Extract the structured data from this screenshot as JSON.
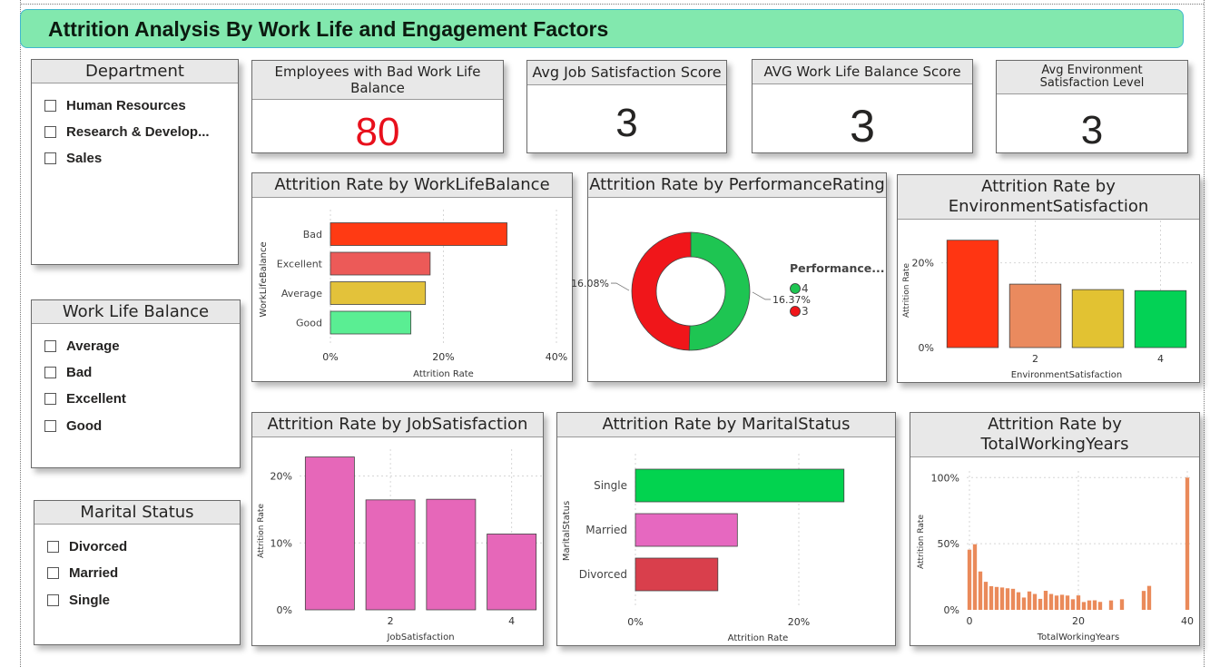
{
  "page_title": "Attrition Analysis By Work Life and Engagement Factors",
  "slicers": {
    "department": {
      "title": "Department",
      "items": [
        "Human Resources",
        "Research & Develop...",
        "Sales"
      ]
    },
    "work_life_balance": {
      "title": "Work Life Balance",
      "items": [
        "Average",
        "Bad",
        "Excellent",
        "Good"
      ]
    },
    "marital_status": {
      "title": "Marital Status",
      "items": [
        "Divorced",
        "Married",
        "Single"
      ]
    }
  },
  "kpis": [
    {
      "label": "Employees with Bad Work Life Balance",
      "value": "80",
      "color": "#e8101c"
    },
    {
      "label": "Avg Job Satisfaction Score",
      "value": "3",
      "color": "#252423"
    },
    {
      "label": "AVG Work Life Balance Score",
      "value": "3",
      "color": "#252423"
    },
    {
      "label": "Avg Environment Satisfaction Level",
      "value": "3",
      "color": "#252423"
    }
  ],
  "chart_data": [
    {
      "id": "wlb",
      "type": "bar",
      "orientation": "horizontal",
      "title": "Attrition Rate by WorkLifeBalance",
      "xlabel": "Attrition Rate",
      "ylabel": "WorkLifeBalance",
      "categories": [
        "Bad",
        "Excellent",
        "Average",
        "Good"
      ],
      "values": [
        0.3125,
        0.1765,
        0.1682,
        0.1424
      ],
      "colors": [
        "#ff3a13",
        "#ec5a58",
        "#e3c23a",
        "#5aee93"
      ],
      "xlim": [
        0,
        0.4
      ],
      "xticks": [
        {
          "v": 0,
          "label": "0%"
        },
        {
          "v": 0.2,
          "label": "20%"
        },
        {
          "v": 0.4,
          "label": "40%"
        }
      ],
      "grid": true
    },
    {
      "id": "perf",
      "type": "pie",
      "style": "donut",
      "title": "Attrition Rate by PerformanceRating",
      "legend_title": "Performance...",
      "legend_position": "right",
      "slices": [
        {
          "label": "4",
          "value": 0.1637,
          "color": "#1ec552",
          "data_label": "16.37%"
        },
        {
          "label": "3",
          "value": 0.1608,
          "color": "#f0161a",
          "data_label": "16.08%"
        }
      ]
    },
    {
      "id": "env",
      "type": "bar",
      "title": "Attrition Rate by EnvironmentSatisfaction",
      "title_lines": [
        "Attrition Rate by",
        "EnvironmentSatisfaction"
      ],
      "xlabel": "EnvironmentSatisfaction",
      "ylabel": "Attrition Rate",
      "categories": [
        "1",
        "2",
        "3",
        "4"
      ],
      "values": [
        0.2535,
        0.1498,
        0.1369,
        0.1345
      ],
      "colors": [
        "#ff3512",
        "#ea8a5e",
        "#e2c232",
        "#03d255"
      ],
      "ylim": [
        0,
        0.3
      ],
      "yticks": [
        {
          "v": 0,
          "label": "0%"
        },
        {
          "v": 0.2,
          "label": "20%"
        }
      ],
      "xticks": [
        {
          "i": 1,
          "label": "2"
        },
        {
          "i": 3,
          "label": "4"
        }
      ],
      "grid": true
    },
    {
      "id": "job",
      "type": "bar",
      "title": "Attrition Rate by JobSatisfaction",
      "xlabel": "JobSatisfaction",
      "ylabel": "Attrition Rate",
      "categories": [
        "1",
        "2",
        "3",
        "4"
      ],
      "values": [
        0.2284,
        0.1643,
        0.1652,
        0.1133
      ],
      "colors": [
        "#e667b9",
        "#e667b9",
        "#e667b9",
        "#e667b9"
      ],
      "ylim": [
        0,
        0.24
      ],
      "yticks": [
        {
          "v": 0,
          "label": "0%"
        },
        {
          "v": 0.1,
          "label": "10%"
        },
        {
          "v": 0.2,
          "label": "20%"
        }
      ],
      "xticks": [
        {
          "i": 1,
          "label": "2"
        },
        {
          "i": 3,
          "label": "4"
        }
      ],
      "grid": true
    },
    {
      "id": "marital",
      "type": "bar",
      "orientation": "horizontal",
      "title": "Attrition Rate by MaritalStatus",
      "xlabel": "Attrition Rate",
      "ylabel": "MaritalStatus",
      "categories": [
        "Single",
        "Married",
        "Divorced"
      ],
      "values": [
        0.2553,
        0.1248,
        0.1009
      ],
      "colors": [
        "#02d34f",
        "#e668c0",
        "#d93f4c"
      ],
      "xlim": [
        0,
        0.3
      ],
      "xticks": [
        {
          "v": 0,
          "label": "0%"
        },
        {
          "v": 0.2,
          "label": "20%"
        }
      ],
      "grid": true
    },
    {
      "id": "years",
      "type": "bar",
      "title": "Attrition Rate by TotalWorkingYears",
      "title_lines": [
        "Attrition Rate by",
        "TotalWorkingYears"
      ],
      "xlabel": "TotalWorkingYears",
      "ylabel": "Attrition Rate",
      "x": [
        0,
        1,
        2,
        3,
        4,
        5,
        6,
        7,
        8,
        9,
        10,
        11,
        12,
        13,
        14,
        15,
        16,
        17,
        18,
        19,
        20,
        21,
        22,
        23,
        24,
        25,
        26,
        27,
        28,
        29,
        30,
        31,
        32,
        33,
        34,
        35,
        36,
        37,
        38,
        39,
        40
      ],
      "values": [
        0.455,
        0.496,
        0.29,
        0.212,
        0.179,
        0.173,
        0.169,
        0.163,
        0.159,
        0.133,
        0.093,
        0.139,
        0.12,
        0.083,
        0.144,
        0.12,
        0.108,
        0.114,
        0.108,
        0.08,
        0.109,
        0.059,
        0.071,
        0.072,
        0.06,
        0.0,
        0.071,
        0.0,
        0.08,
        0.0,
        0.0,
        0.0,
        0.143,
        0.181,
        0.0,
        0.0,
        0.0,
        0.0,
        0.0,
        0.0,
        1.0
      ],
      "color": "#ea8a5a",
      "ylim": [
        0,
        1.05
      ],
      "yticks": [
        {
          "v": 0,
          "label": "0%"
        },
        {
          "v": 0.5,
          "label": "50%"
        },
        {
          "v": 1.0,
          "label": "100%"
        }
      ],
      "xticks": [
        {
          "v": 0,
          "label": "0"
        },
        {
          "v": 20,
          "label": "20"
        },
        {
          "v": 40,
          "label": "40"
        }
      ],
      "grid": true
    }
  ]
}
